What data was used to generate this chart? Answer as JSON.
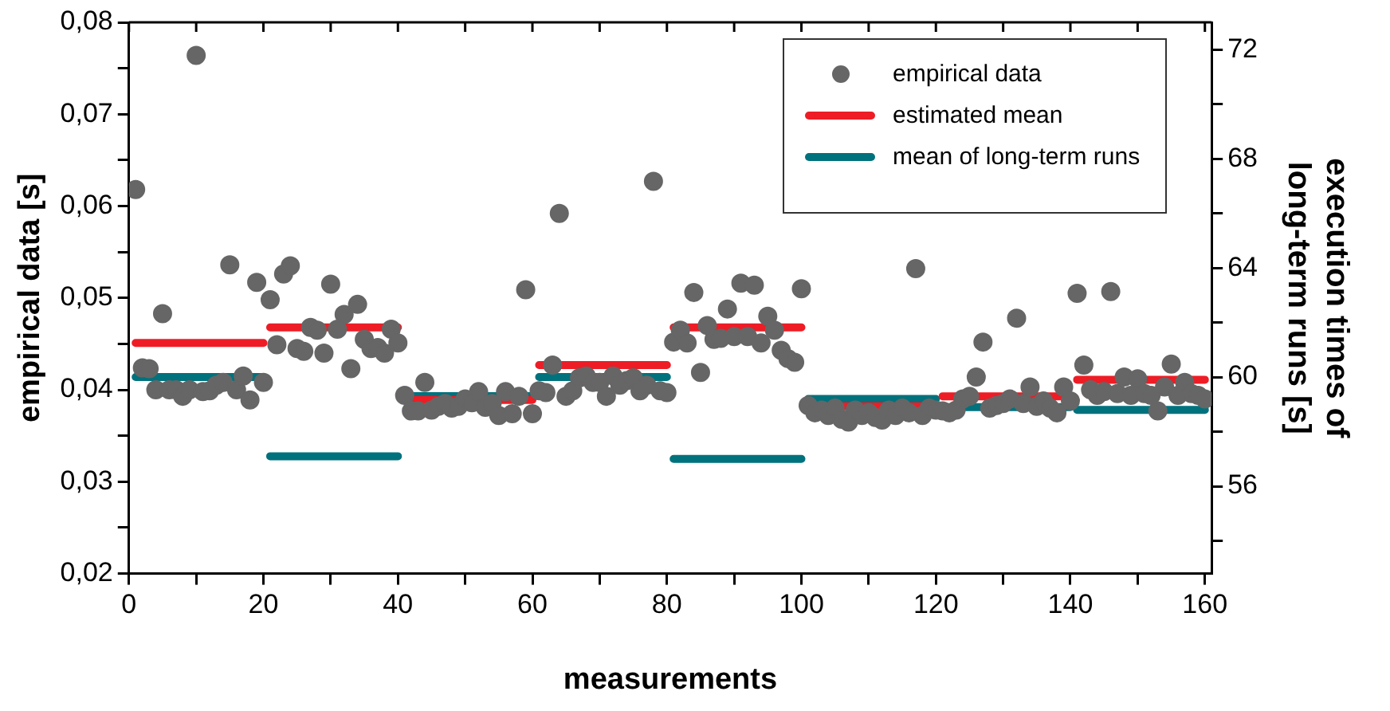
{
  "chart_data": {
    "type": "scatter",
    "xlabel": "measurements",
    "ylabel": "empirical data [s]",
    "y2label": "execution times of long-term runs [s]",
    "x": [
      1,
      2,
      3,
      4,
      5,
      6,
      7,
      8,
      9,
      10,
      11,
      12,
      13,
      14,
      15,
      16,
      17,
      18,
      19,
      20,
      21,
      22,
      23,
      24,
      25,
      26,
      27,
      28,
      29,
      30,
      31,
      32,
      33,
      34,
      35,
      36,
      37,
      38,
      39,
      40,
      41,
      42,
      43,
      44,
      45,
      46,
      47,
      48,
      49,
      50,
      51,
      52,
      53,
      54,
      55,
      56,
      57,
      58,
      59,
      60,
      61,
      62,
      63,
      64,
      65,
      66,
      67,
      68,
      69,
      70,
      71,
      72,
      73,
      74,
      75,
      76,
      77,
      78,
      79,
      80,
      81,
      82,
      83,
      84,
      85,
      86,
      87,
      88,
      89,
      90,
      91,
      92,
      93,
      94,
      95,
      96,
      97,
      98,
      99,
      100,
      101,
      102,
      103,
      104,
      105,
      106,
      107,
      108,
      109,
      110,
      111,
      112,
      113,
      114,
      115,
      116,
      117,
      118,
      119,
      120,
      121,
      122,
      123,
      124,
      125,
      126,
      127,
      128,
      129,
      130,
      131,
      132,
      133,
      134,
      135,
      136,
      137,
      138,
      139,
      140,
      141,
      142,
      143,
      144,
      145,
      146,
      147,
      148,
      149,
      150,
      151,
      152,
      153,
      154,
      155,
      156,
      157,
      158,
      159,
      160
    ],
    "series": [
      {
        "name": "empirical data",
        "marker": "circle",
        "color": "#666666",
        "values": [
          0.0618,
          0.0424,
          0.0423,
          0.04,
          0.0483,
          0.04,
          0.04,
          0.0393,
          0.04,
          0.0764,
          0.0398,
          0.0399,
          0.0405,
          0.0408,
          0.0536,
          0.04,
          0.0415,
          0.0389,
          0.0517,
          0.0408,
          0.0498,
          0.0449,
          0.0526,
          0.0535,
          0.0445,
          0.0442,
          0.0468,
          0.0465,
          0.044,
          0.0515,
          0.0466,
          0.0482,
          0.0423,
          0.0493,
          0.0455,
          0.0445,
          0.0446,
          0.044,
          0.0466,
          0.0451,
          0.0394,
          0.0377,
          0.0377,
          0.0408,
          0.0378,
          0.0382,
          0.0385,
          0.038,
          0.0382,
          0.039,
          0.0386,
          0.0398,
          0.0381,
          0.0385,
          0.0372,
          0.0398,
          0.0374,
          0.0393,
          0.0509,
          0.0374,
          0.0399,
          0.0397,
          0.0427,
          0.0592,
          0.0393,
          0.0399,
          0.0413,
          0.0415,
          0.0408,
          0.0408,
          0.0393,
          0.0415,
          0.0405,
          0.041,
          0.0413,
          0.0399,
          0.0405,
          0.0627,
          0.0399,
          0.0397,
          0.0452,
          0.0465,
          0.0451,
          0.0506,
          0.0419,
          0.047,
          0.0455,
          0.0456,
          0.0488,
          0.0458,
          0.0516,
          0.0458,
          0.0514,
          0.0451,
          0.048,
          0.0465,
          0.0443,
          0.0434,
          0.043,
          0.051,
          0.0383,
          0.0375,
          0.0378,
          0.0372,
          0.038,
          0.0368,
          0.0365,
          0.0378,
          0.0372,
          0.0375,
          0.037,
          0.0367,
          0.0378,
          0.0372,
          0.038,
          0.0375,
          0.0532,
          0.0372,
          0.038,
          0.0378,
          0.0377,
          0.0375,
          0.0378,
          0.039,
          0.0393,
          0.0414,
          0.0452,
          0.038,
          0.0383,
          0.0385,
          0.039,
          0.0478,
          0.0385,
          0.0403,
          0.0382,
          0.0388,
          0.038,
          0.0375,
          0.0403,
          0.0388,
          0.0505,
          0.0427,
          0.04,
          0.0394,
          0.0398,
          0.0507,
          0.0396,
          0.0414,
          0.0394,
          0.0412,
          0.0396,
          0.0394,
          0.0377,
          0.0403,
          0.0428,
          0.0394,
          0.0408,
          0.0396,
          0.0394,
          0.039
        ]
      },
      {
        "name": "estimated mean",
        "type": "line",
        "color": "#ee1c25",
        "x": [
          1,
          20,
          20.5,
          21,
          40,
          40.5,
          41,
          60,
          60.5,
          61,
          80,
          80.5,
          81,
          100,
          100.5,
          101,
          120,
          120.5,
          121,
          140,
          140.5,
          141,
          160
        ],
        "values": [
          0.0451,
          0.0451,
          null,
          0.0468,
          0.0468,
          null,
          0.0389,
          0.0389,
          null,
          0.0427,
          0.0427,
          null,
          0.0468,
          0.0468,
          null,
          0.0382,
          0.0382,
          null,
          0.0393,
          0.0393,
          null,
          0.0411,
          0.0411
        ]
      },
      {
        "name": "mean of long-term runs",
        "type": "line",
        "axis": "y2",
        "color": "#00727d",
        "x": [
          1,
          20,
          20.5,
          21,
          40,
          40.5,
          41,
          60,
          60.5,
          61,
          80,
          80.5,
          81,
          100,
          100.5,
          101,
          120,
          120.5,
          121,
          140,
          140.5,
          141,
          160
        ],
        "values": [
          60.0,
          60.0,
          null,
          57.1,
          57.1,
          null,
          59.3,
          59.3,
          null,
          60.0,
          60.0,
          null,
          57.0,
          57.0,
          null,
          59.2,
          59.2,
          null,
          58.9,
          58.9,
          null,
          58.8,
          58.8
        ]
      }
    ],
    "xlim": [
      0,
      161
    ],
    "xticks": [
      0,
      {
        "value": 10,
        "label": null
      },
      20,
      {
        "value": 30,
        "label": null
      },
      40,
      {
        "value": 50,
        "label": null
      },
      60,
      {
        "value": 70,
        "label": null
      },
      80,
      {
        "value": 90,
        "label": null
      },
      100,
      {
        "value": 110,
        "label": null
      },
      120,
      {
        "value": 130,
        "label": null
      },
      140,
      {
        "value": 150,
        "label": null
      },
      160
    ],
    "ylim": [
      0.02,
      0.08
    ],
    "yticks": [
      {
        "value": 0.02,
        "label": "0,02"
      },
      {
        "value": 0.025,
        "label": null
      },
      {
        "value": 0.03,
        "label": "0,03"
      },
      {
        "value": 0.035,
        "label": null
      },
      {
        "value": 0.04,
        "label": "0,04"
      },
      {
        "value": 0.045,
        "label": null
      },
      {
        "value": 0.05,
        "label": "0,05"
      },
      {
        "value": 0.055,
        "label": null
      },
      {
        "value": 0.06,
        "label": "0,06"
      },
      {
        "value": 0.065,
        "label": null
      },
      {
        "value": 0.07,
        "label": "0,07"
      },
      {
        "value": 0.075,
        "label": null
      },
      {
        "value": 0.08,
        "label": "0,08"
      }
    ],
    "y2lim": [
      52.8,
      73
    ],
    "y2ticks": [
      {
        "value": 54,
        "label": null
      },
      56,
      {
        "value": 58,
        "label": null
      },
      60,
      {
        "value": 62,
        "label": null
      },
      64,
      {
        "value": 66,
        "label": null
      },
      68,
      {
        "value": 70,
        "label": null
      },
      72
    ],
    "grid": false,
    "legend": "top right"
  }
}
